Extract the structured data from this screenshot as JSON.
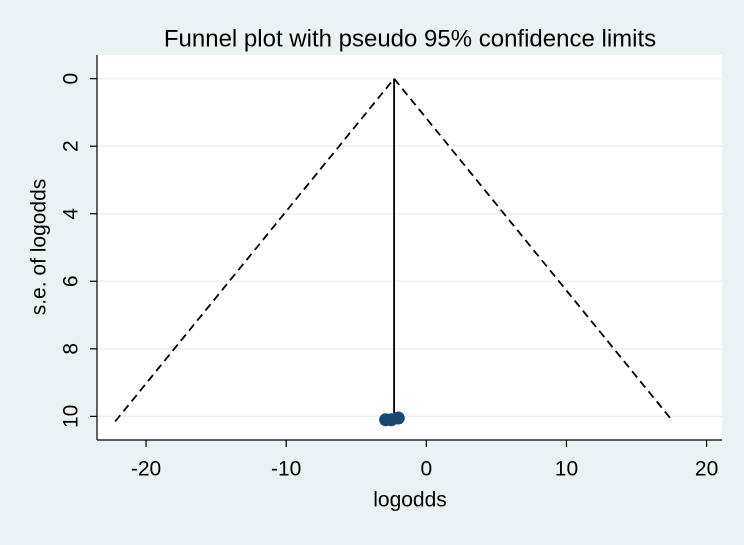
{
  "chart_data": {
    "type": "scatter",
    "title": "Funnel plot with pseudo 95% confidence limits",
    "x_label": "logodds",
    "y_label": "s.e. of logodds",
    "xlim": [
      -23.5,
      21.1
    ],
    "ylim": [
      -0.7,
      10.7
    ],
    "y_reversed": true,
    "xticks": [
      -20,
      -10,
      0,
      10,
      20
    ],
    "yticks": [
      0,
      2,
      4,
      6,
      8,
      10
    ],
    "grid": true,
    "points": {
      "color": "#1a476f",
      "x": [
        -2.9,
        -2.5,
        -2.0
      ],
      "y": [
        10.1,
        10.1,
        10.05
      ]
    },
    "funnel_limits": {
      "color": "#000000",
      "dashed": true,
      "x": [
        -22.2,
        -2.3,
        17.6
      ],
      "y": [
        10.15,
        0,
        10.15
      ]
    },
    "pooled_line": {
      "color": "#000000",
      "dashed": false,
      "x": [
        -2.3,
        -2.3
      ],
      "y": [
        0,
        10.15
      ]
    }
  }
}
